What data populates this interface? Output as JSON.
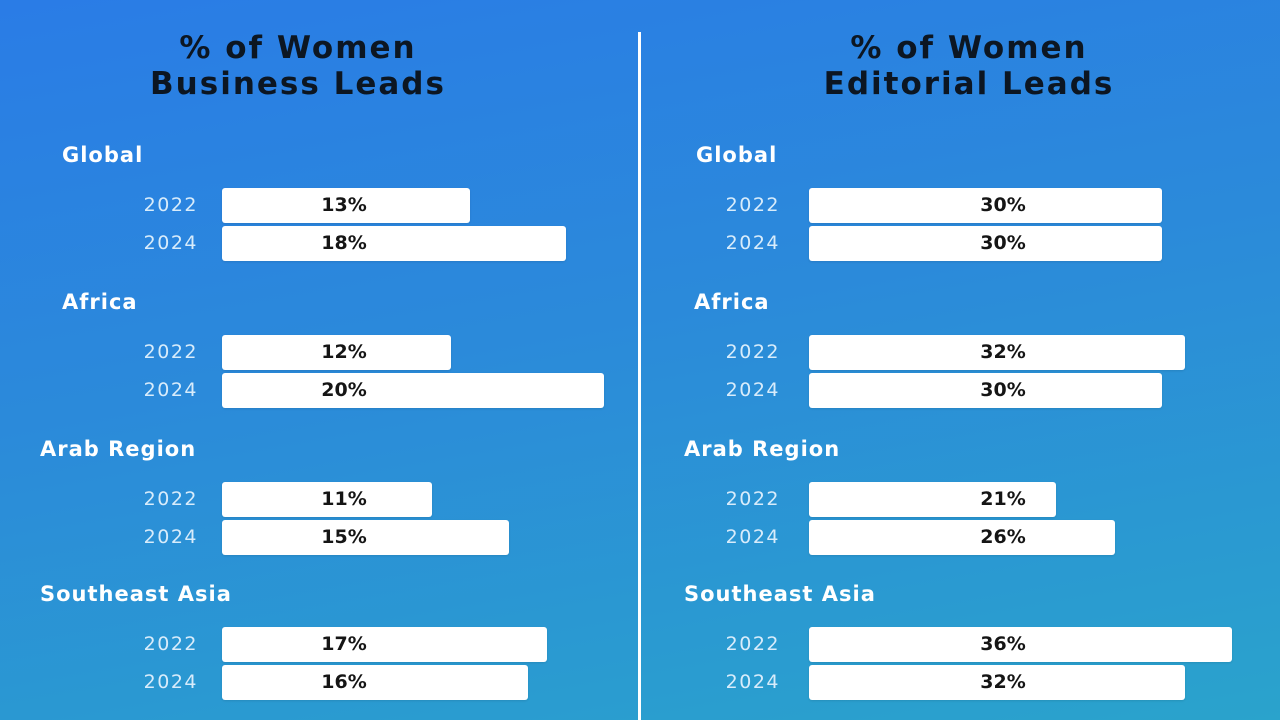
{
  "chart_data": [
    {
      "type": "bar",
      "title_lines": [
        "% of Women",
        "Business Leads"
      ],
      "groups": [
        {
          "region": "Global",
          "bars": [
            {
              "year": "2022",
              "value": 13,
              "label": "13%"
            },
            {
              "year": "2024",
              "value": 18,
              "label": "18%"
            }
          ]
        },
        {
          "region": "Africa",
          "bars": [
            {
              "year": "2022",
              "value": 12,
              "label": "12%"
            },
            {
              "year": "2024",
              "value": 20,
              "label": "20%"
            }
          ]
        },
        {
          "region": "Arab Region",
          "bars": [
            {
              "year": "2022",
              "value": 11,
              "label": "11%"
            },
            {
              "year": "2024",
              "value": 15,
              "label": "15%"
            }
          ]
        },
        {
          "region": "Southeast Asia",
          "bars": [
            {
              "year": "2022",
              "value": 17,
              "label": "17%"
            },
            {
              "year": "2024",
              "value": 16,
              "label": "16%"
            }
          ]
        }
      ]
    },
    {
      "type": "bar",
      "title_lines": [
        "% of Women",
        "Editorial Leads"
      ],
      "groups": [
        {
          "region": "Global",
          "bars": [
            {
              "year": "2022",
              "value": 30,
              "label": "30%"
            },
            {
              "year": "2024",
              "value": 30,
              "label": "30%"
            }
          ]
        },
        {
          "region": "Africa",
          "bars": [
            {
              "year": "2022",
              "value": 32,
              "label": "32%"
            },
            {
              "year": "2024",
              "value": 30,
              "label": "30%"
            }
          ]
        },
        {
          "region": "Arab Region",
          "bars": [
            {
              "year": "2022",
              "value": 21,
              "label": "21%"
            },
            {
              "year": "2024",
              "value": 26,
              "label": "26%"
            }
          ]
        },
        {
          "region": "Southeast Asia",
          "bars": [
            {
              "year": "2022",
              "value": 36,
              "label": "36%"
            },
            {
              "year": "2024",
              "value": 32,
              "label": "32%"
            }
          ]
        }
      ]
    }
  ],
  "colors": {
    "background_top": "#2a7ce6",
    "background_bottom": "#2aa3cc",
    "bar": "#ffffff",
    "title": "#0c1622",
    "region_label": "#ffffff",
    "year_label": "#d8ecfb"
  }
}
